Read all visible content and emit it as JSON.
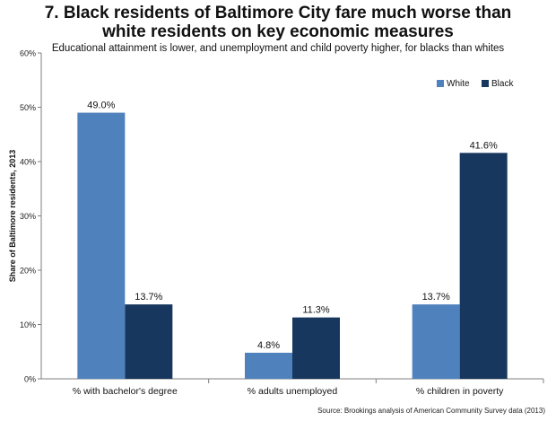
{
  "chart_data": {
    "type": "bar",
    "title_lines": [
      "7. Black residents of Baltimore City fare much worse than",
      "white residents on key economic measures"
    ],
    "subtitle": "Educational attainment is lower, and unemployment and child poverty higher, for blacks than whites",
    "ylabel": "Share of Baltimore residents, 2013",
    "xlabel": "",
    "ylim": [
      0,
      60
    ],
    "yticks": [
      0,
      10,
      20,
      30,
      40,
      50,
      60
    ],
    "ytick_labels": [
      "0%",
      "10%",
      "20%",
      "30%",
      "40%",
      "50%",
      "60%"
    ],
    "categories": [
      "% with bachelor's degree",
      "% adults unemployed",
      "% children in poverty"
    ],
    "series": [
      {
        "name": "White",
        "color": "#4f81bd",
        "values": [
          49.0,
          4.8,
          13.7
        ],
        "labels": [
          "49.0%",
          "4.8%",
          "13.7%"
        ]
      },
      {
        "name": "Black",
        "color": "#17375e",
        "values": [
          13.7,
          11.3,
          41.6
        ],
        "labels": [
          "13.7%",
          "11.3%",
          "41.6%"
        ]
      }
    ],
    "legend_position": "top-right",
    "grid": false,
    "source": "Source: Brookings analysis of American Community Survey data (2013)"
  }
}
